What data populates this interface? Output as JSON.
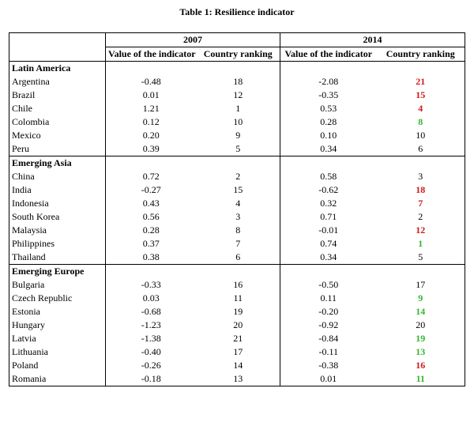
{
  "title": "Table 1: Resilience indicator",
  "headers": {
    "year1": "2007",
    "year2": "2014",
    "value_label": "Value of the indicator",
    "rank_label": "Country ranking"
  },
  "colors": {
    "worse": "#d0181c",
    "better": "#35b52f"
  },
  "groups": [
    {
      "name": "Latin America",
      "rows": [
        {
          "country": "Argentina",
          "v2007": "-0.48",
          "r2007": "18",
          "v2014": "-2.08",
          "r2014": "21",
          "change": "worse"
        },
        {
          "country": "Brazil",
          "v2007": "0.01",
          "r2007": "12",
          "v2014": "-0.35",
          "r2014": "15",
          "change": "worse"
        },
        {
          "country": "Chile",
          "v2007": "1.21",
          "r2007": "1",
          "v2014": "0.53",
          "r2014": "4",
          "change": "worse"
        },
        {
          "country": "Colombia",
          "v2007": "0.12",
          "r2007": "10",
          "v2014": "0.28",
          "r2014": "8",
          "change": "better"
        },
        {
          "country": "Mexico",
          "v2007": "0.20",
          "r2007": "9",
          "v2014": "0.10",
          "r2014": "10",
          "change": "none"
        },
        {
          "country": "Peru",
          "v2007": "0.39",
          "r2007": "5",
          "v2014": "0.34",
          "r2014": "6",
          "change": "none"
        }
      ]
    },
    {
      "name": "Emerging Asia",
      "rows": [
        {
          "country": "China",
          "v2007": "0.72",
          "r2007": "2",
          "v2014": "0.58",
          "r2014": "3",
          "change": "none"
        },
        {
          "country": "India",
          "v2007": "-0.27",
          "r2007": "15",
          "v2014": "-0.62",
          "r2014": "18",
          "change": "worse"
        },
        {
          "country": "Indonesia",
          "v2007": "0.43",
          "r2007": "4",
          "v2014": "0.32",
          "r2014": "7",
          "change": "worse"
        },
        {
          "country": "South Korea",
          "v2007": "0.56",
          "r2007": "3",
          "v2014": "0.71",
          "r2014": "2",
          "change": "none"
        },
        {
          "country": "Malaysia",
          "v2007": "0.28",
          "r2007": "8",
          "v2014": "-0.01",
          "r2014": "12",
          "change": "worse"
        },
        {
          "country": "Philippines",
          "v2007": "0.37",
          "r2007": "7",
          "v2014": "0.74",
          "r2014": "1",
          "change": "better"
        },
        {
          "country": "Thailand",
          "v2007": "0.38",
          "r2007": "6",
          "v2014": "0.34",
          "r2014": "5",
          "change": "none"
        }
      ]
    },
    {
      "name": "Emerging Europe",
      "rows": [
        {
          "country": "Bulgaria",
          "v2007": "-0.33",
          "r2007": "16",
          "v2014": "-0.50",
          "r2014": "17",
          "change": "none"
        },
        {
          "country": "Czech Republic",
          "v2007": "0.03",
          "r2007": "11",
          "v2014": "0.11",
          "r2014": "9",
          "change": "better"
        },
        {
          "country": "Estonia",
          "v2007": "-0.68",
          "r2007": "19",
          "v2014": "-0.20",
          "r2014": "14",
          "change": "better"
        },
        {
          "country": "Hungary",
          "v2007": "-1.23",
          "r2007": "20",
          "v2014": "-0.92",
          "r2014": "20",
          "change": "none"
        },
        {
          "country": "Latvia",
          "v2007": "-1.38",
          "r2007": "21",
          "v2014": "-0.84",
          "r2014": "19",
          "change": "better"
        },
        {
          "country": "Lithuania",
          "v2007": "-0.40",
          "r2007": "17",
          "v2014": "-0.11",
          "r2014": "13",
          "change": "better"
        },
        {
          "country": "Poland",
          "v2007": "-0.26",
          "r2007": "14",
          "v2014": "-0.38",
          "r2014": "16",
          "change": "worse"
        },
        {
          "country": "Romania",
          "v2007": "-0.18",
          "r2007": "13",
          "v2014": "0.01",
          "r2014": "11",
          "change": "better"
        }
      ]
    }
  ]
}
